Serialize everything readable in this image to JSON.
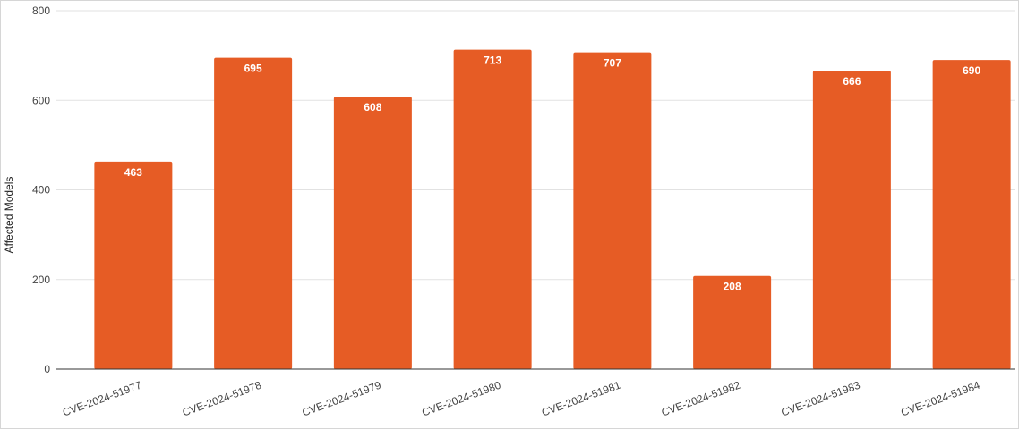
{
  "chart_data": {
    "type": "bar",
    "title": "",
    "xlabel": "",
    "ylabel": "Affected Models",
    "ylim": [
      0,
      800
    ],
    "yticks": [
      0,
      200,
      400,
      600,
      800
    ],
    "grid": true,
    "legend": "none",
    "bar_color": "#e65c25",
    "categories": [
      "CVE-2024-51977",
      "CVE-2024-51978",
      "CVE-2024-51979",
      "CVE-2024-51980",
      "CVE-2024-51981",
      "CVE-2024-51982",
      "CVE-2024-51983",
      "CVE-2024-51984"
    ],
    "values": [
      463,
      695,
      608,
      713,
      707,
      208,
      666,
      690
    ]
  }
}
